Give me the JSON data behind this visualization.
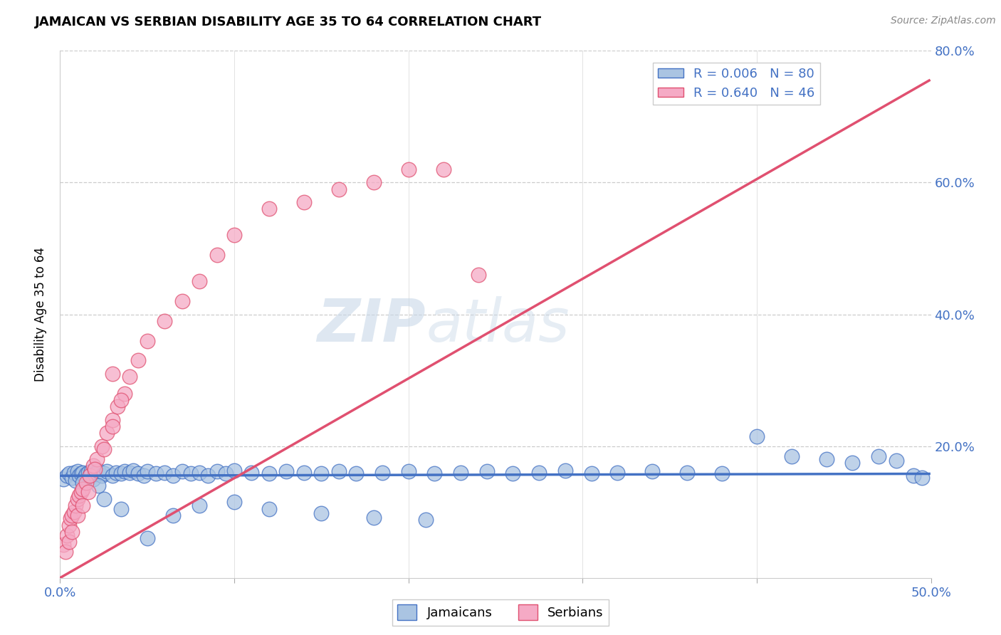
{
  "title": "JAMAICAN VS SERBIAN DISABILITY AGE 35 TO 64 CORRELATION CHART",
  "source": "Source: ZipAtlas.com",
  "ylabel": "Disability Age 35 to 64",
  "xmin": 0.0,
  "xmax": 0.5,
  "ymin": 0.0,
  "ymax": 0.8,
  "jamaican_R": 0.006,
  "jamaican_N": 80,
  "serbian_R": 0.64,
  "serbian_N": 46,
  "jamaican_color": "#aac4e2",
  "serbian_color": "#f5aac5",
  "jamaican_line_color": "#4472c4",
  "serbian_line_color": "#e05070",
  "watermark_zip": "ZIP",
  "watermark_atlas": "atlas",
  "jamaican_trend_x": [
    0.0,
    0.499
  ],
  "jamaican_trend_y": [
    0.155,
    0.158
  ],
  "serbian_trend_x": [
    0.0,
    0.499
  ],
  "serbian_trend_y": [
    0.0,
    0.755
  ],
  "jamaican_x": [
    0.002,
    0.004,
    0.005,
    0.007,
    0.008,
    0.009,
    0.01,
    0.011,
    0.012,
    0.013,
    0.014,
    0.015,
    0.016,
    0.017,
    0.018,
    0.019,
    0.02,
    0.022,
    0.024,
    0.025,
    0.027,
    0.03,
    0.032,
    0.035,
    0.037,
    0.04,
    0.042,
    0.045,
    0.048,
    0.05,
    0.055,
    0.06,
    0.065,
    0.07,
    0.075,
    0.08,
    0.085,
    0.09,
    0.095,
    0.1,
    0.11,
    0.12,
    0.13,
    0.14,
    0.15,
    0.16,
    0.17,
    0.185,
    0.2,
    0.215,
    0.23,
    0.245,
    0.26,
    0.275,
    0.29,
    0.305,
    0.32,
    0.34,
    0.36,
    0.38,
    0.4,
    0.42,
    0.44,
    0.455,
    0.47,
    0.48,
    0.49,
    0.495,
    0.025,
    0.035,
    0.05,
    0.065,
    0.08,
    0.1,
    0.12,
    0.15,
    0.18,
    0.21,
    0.013,
    0.022
  ],
  "jamaican_y": [
    0.15,
    0.155,
    0.158,
    0.152,
    0.16,
    0.148,
    0.162,
    0.155,
    0.158,
    0.16,
    0.153,
    0.157,
    0.16,
    0.155,
    0.162,
    0.15,
    0.157,
    0.163,
    0.155,
    0.158,
    0.162,
    0.155,
    0.16,
    0.158,
    0.162,
    0.16,
    0.163,
    0.158,
    0.155,
    0.162,
    0.158,
    0.16,
    0.155,
    0.162,
    0.158,
    0.16,
    0.155,
    0.162,
    0.158,
    0.163,
    0.16,
    0.158,
    0.162,
    0.16,
    0.158,
    0.162,
    0.158,
    0.16,
    0.162,
    0.158,
    0.16,
    0.162,
    0.158,
    0.16,
    0.163,
    0.158,
    0.16,
    0.162,
    0.16,
    0.158,
    0.215,
    0.185,
    0.18,
    0.175,
    0.185,
    0.178,
    0.155,
    0.152,
    0.12,
    0.105,
    0.06,
    0.095,
    0.11,
    0.115,
    0.105,
    0.098,
    0.092,
    0.088,
    0.145,
    0.14
  ],
  "serbian_x": [
    0.002,
    0.004,
    0.005,
    0.006,
    0.007,
    0.008,
    0.009,
    0.01,
    0.011,
    0.012,
    0.013,
    0.015,
    0.017,
    0.019,
    0.021,
    0.024,
    0.027,
    0.03,
    0.033,
    0.037,
    0.04,
    0.045,
    0.05,
    0.06,
    0.07,
    0.08,
    0.09,
    0.1,
    0.12,
    0.14,
    0.16,
    0.18,
    0.2,
    0.22,
    0.003,
    0.005,
    0.007,
    0.01,
    0.013,
    0.016,
    0.02,
    0.025,
    0.03,
    0.035,
    0.24,
    0.03
  ],
  "serbian_y": [
    0.05,
    0.065,
    0.08,
    0.09,
    0.095,
    0.1,
    0.11,
    0.12,
    0.125,
    0.13,
    0.135,
    0.145,
    0.155,
    0.17,
    0.18,
    0.2,
    0.22,
    0.24,
    0.26,
    0.28,
    0.305,
    0.33,
    0.36,
    0.39,
    0.42,
    0.45,
    0.49,
    0.52,
    0.56,
    0.57,
    0.59,
    0.6,
    0.62,
    0.62,
    0.04,
    0.055,
    0.07,
    0.095,
    0.11,
    0.13,
    0.165,
    0.195,
    0.23,
    0.27,
    0.46,
    0.31
  ]
}
